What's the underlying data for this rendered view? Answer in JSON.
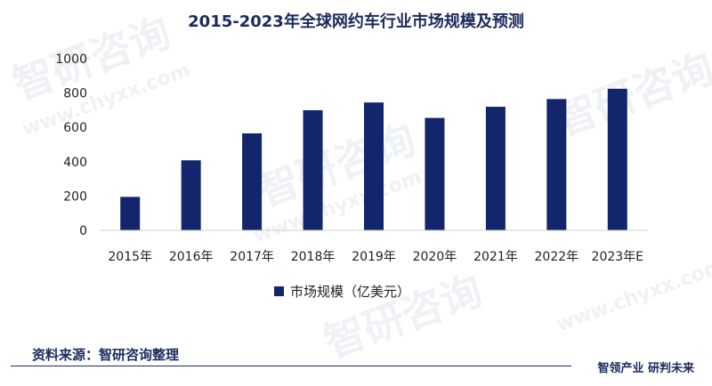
{
  "chart_data": {
    "type": "bar",
    "title": "2015-2023年全球网约车行业市场规模及预测",
    "categories": [
      "2015年",
      "2016年",
      "2017年",
      "2018年",
      "2019年",
      "2020年",
      "2021年",
      "2022年",
      "2023年E"
    ],
    "series": [
      {
        "name": "市场规模（亿美元）",
        "values": [
          195,
          408,
          565,
          700,
          745,
          655,
          720,
          765,
          825
        ]
      }
    ],
    "ylim": [
      0,
      1000
    ],
    "yticks": [
      0,
      200,
      400,
      600,
      800,
      1000
    ],
    "grid": false,
    "legend_position": "bottom",
    "bar_color": "#13256b"
  },
  "footer": {
    "source": "资料来源：智研咨询整理",
    "brand": "智领产业 研判未来"
  },
  "watermark": {
    "text": "智研咨询",
    "url": "www.chyxx.com"
  }
}
